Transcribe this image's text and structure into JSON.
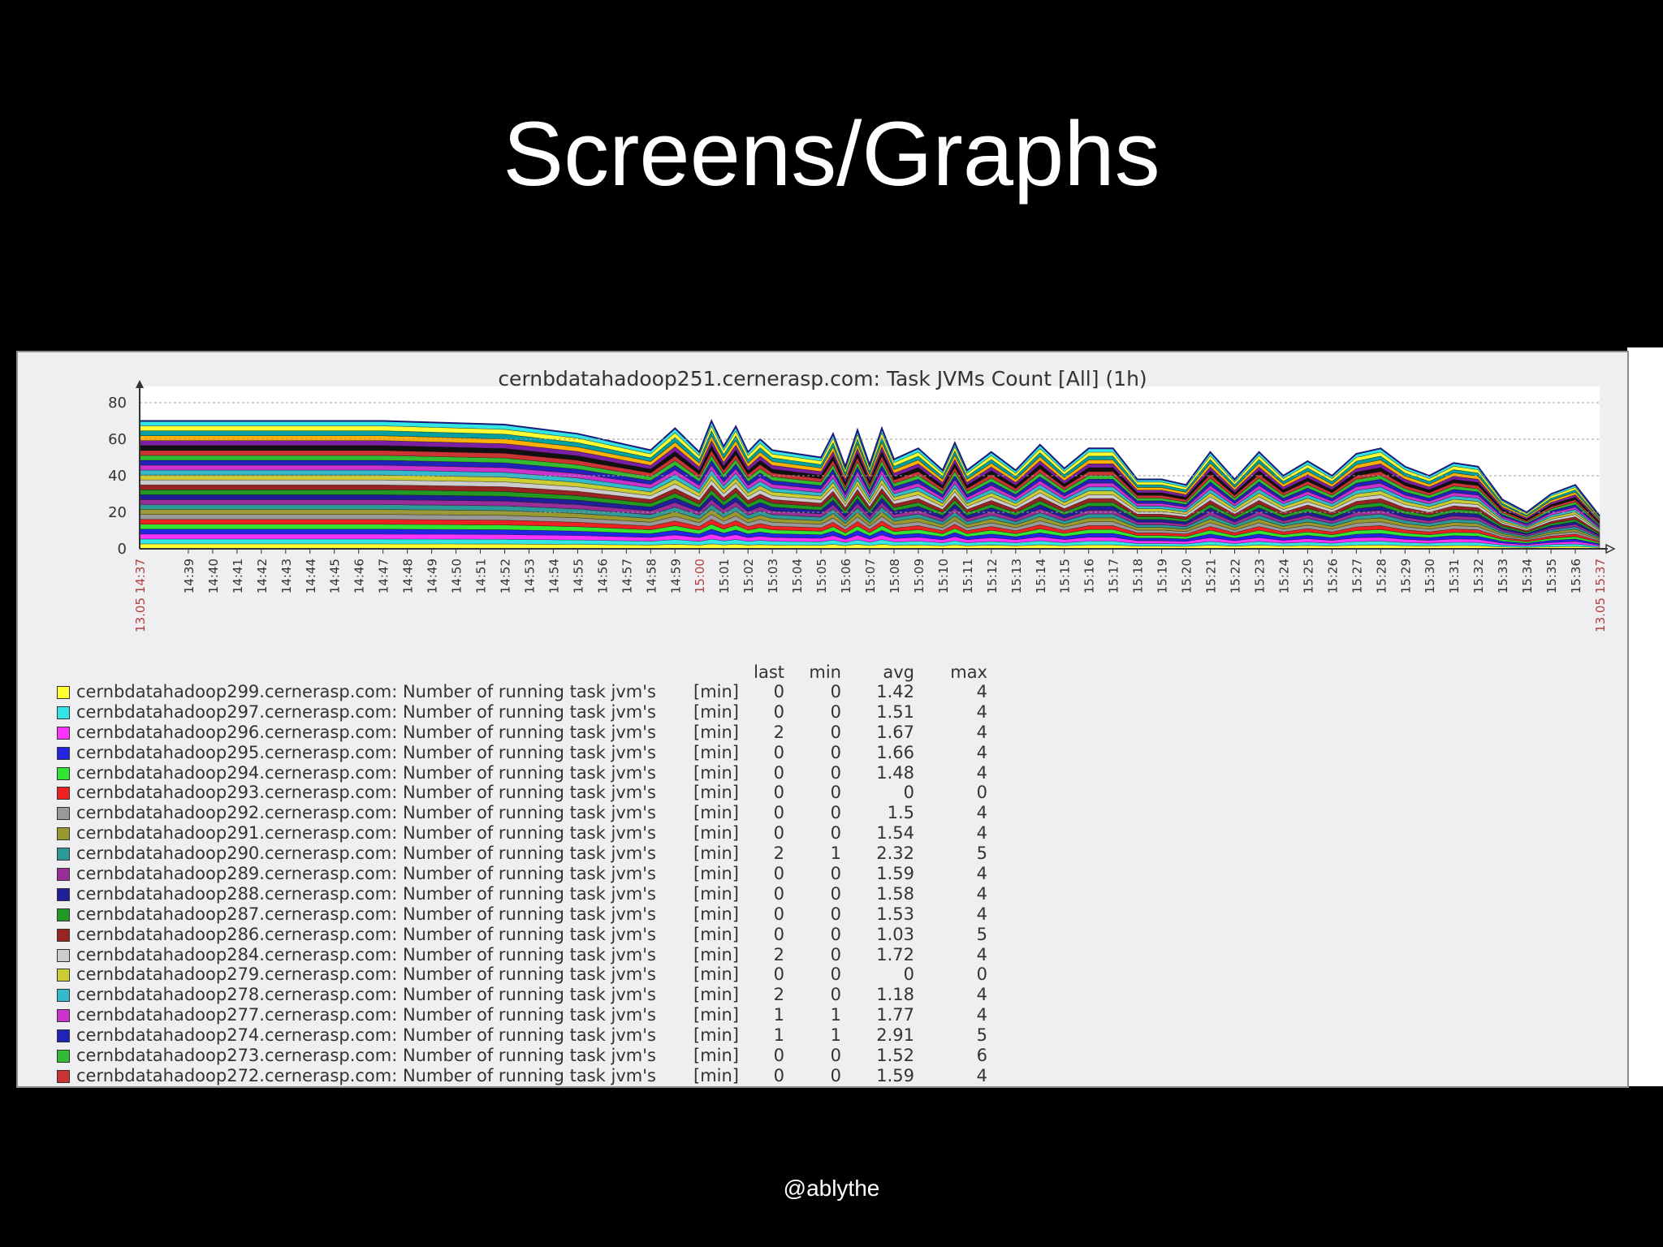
{
  "slide": {
    "title": "Screens/Graphs",
    "footer": "@ablythe"
  },
  "chart_data": {
    "type": "area",
    "title": "cernbdatahadoop251.cernerasp.com: Task JVMs Count [All] (1h)",
    "ylim": [
      0,
      80
    ],
    "y_ticks": [
      0,
      20,
      40,
      60,
      80
    ],
    "grid": true,
    "x_tick_labels": [
      "14:39",
      "14:40",
      "14:41",
      "14:42",
      "14:43",
      "14:44",
      "14:45",
      "14:46",
      "14:47",
      "14:48",
      "14:49",
      "14:50",
      "14:51",
      "14:52",
      "14:53",
      "14:54",
      "14:55",
      "14:56",
      "14:57",
      "14:58",
      "14:59",
      "15:00",
      "15:01",
      "15:02",
      "15:03",
      "15:04",
      "15:05",
      "15:06",
      "15:07",
      "15:08",
      "15:09",
      "15:10",
      "15:11",
      "15:12",
      "15:13",
      "15:14",
      "15:15",
      "15:16",
      "15:17",
      "15:18",
      "15:19",
      "15:20",
      "15:21",
      "15:22",
      "15:23",
      "15:24",
      "15:25",
      "15:26",
      "15:27",
      "15:28",
      "15:29",
      "15:30",
      "15:31",
      "15:32",
      "15:33",
      "15:34",
      "15:35",
      "15:36"
    ],
    "x_start_label": "13.05 14:37",
    "x_end_label": "13.05 15:37",
    "stacked_total": [
      {
        "x": "14:37",
        "y": 70
      },
      {
        "x": "14:47",
        "y": 70
      },
      {
        "x": "14:52",
        "y": 68
      },
      {
        "x": "14:55",
        "y": 63
      },
      {
        "x": "14:57",
        "y": 57
      },
      {
        "x": "14:58",
        "y": 54
      },
      {
        "x": "14:59",
        "y": 66
      },
      {
        "x": "15:00",
        "y": 53
      },
      {
        "x": "15:00:30",
        "y": 70
      },
      {
        "x": "15:01",
        "y": 56
      },
      {
        "x": "15:01:30",
        "y": 67
      },
      {
        "x": "15:02",
        "y": 53
      },
      {
        "x": "15:02:30",
        "y": 60
      },
      {
        "x": "15:03",
        "y": 54
      },
      {
        "x": "15:05",
        "y": 50
      },
      {
        "x": "15:05:30",
        "y": 63
      },
      {
        "x": "15:06",
        "y": 45
      },
      {
        "x": "15:06:30",
        "y": 65
      },
      {
        "x": "15:07",
        "y": 46
      },
      {
        "x": "15:07:30",
        "y": 66
      },
      {
        "x": "15:08",
        "y": 49
      },
      {
        "x": "15:09",
        "y": 55
      },
      {
        "x": "15:10",
        "y": 43
      },
      {
        "x": "15:10:30",
        "y": 58
      },
      {
        "x": "15:11",
        "y": 43
      },
      {
        "x": "15:12",
        "y": 53
      },
      {
        "x": "15:13",
        "y": 43
      },
      {
        "x": "15:14",
        "y": 57
      },
      {
        "x": "15:15",
        "y": 44
      },
      {
        "x": "15:16",
        "y": 55
      },
      {
        "x": "15:17",
        "y": 55
      },
      {
        "x": "15:18",
        "y": 38
      },
      {
        "x": "15:19",
        "y": 38
      },
      {
        "x": "15:20",
        "y": 35
      },
      {
        "x": "15:21",
        "y": 53
      },
      {
        "x": "15:22",
        "y": 38
      },
      {
        "x": "15:23",
        "y": 53
      },
      {
        "x": "15:24",
        "y": 40
      },
      {
        "x": "15:25",
        "y": 48
      },
      {
        "x": "15:26",
        "y": 40
      },
      {
        "x": "15:27",
        "y": 52
      },
      {
        "x": "15:28",
        "y": 55
      },
      {
        "x": "15:29",
        "y": 45
      },
      {
        "x": "15:30",
        "y": 40
      },
      {
        "x": "15:31",
        "y": 47
      },
      {
        "x": "15:32",
        "y": 45
      },
      {
        "x": "15:33",
        "y": 27
      },
      {
        "x": "15:34",
        "y": 20
      },
      {
        "x": "15:35",
        "y": 30
      },
      {
        "x": "15:36",
        "y": 35
      },
      {
        "x": "15:37",
        "y": 18
      }
    ],
    "legend_columns": [
      "last",
      "min",
      "avg",
      "max"
    ],
    "series": [
      {
        "name": "cernbdatahadoop299.cernerasp.com: Number of running task jvm's",
        "func": "[min]",
        "color": "#ffff33",
        "last": "0",
        "min": "0",
        "avg": "1.42",
        "max": "4"
      },
      {
        "name": "cernbdatahadoop297.cernerasp.com: Number of running task jvm's",
        "func": "[min]",
        "color": "#33e5e5",
        "last": "0",
        "min": "0",
        "avg": "1.51",
        "max": "4"
      },
      {
        "name": "cernbdatahadoop296.cernerasp.com: Number of running task jvm's",
        "func": "[min]",
        "color": "#ff33ff",
        "last": "2",
        "min": "0",
        "avg": "1.67",
        "max": "4"
      },
      {
        "name": "cernbdatahadoop295.cernerasp.com: Number of running task jvm's",
        "func": "[min]",
        "color": "#2424e6",
        "last": "0",
        "min": "0",
        "avg": "1.66",
        "max": "4"
      },
      {
        "name": "cernbdatahadoop294.cernerasp.com: Number of running task jvm's",
        "func": "[min]",
        "color": "#33e533",
        "last": "0",
        "min": "0",
        "avg": "1.48",
        "max": "4"
      },
      {
        "name": "cernbdatahadoop293.cernerasp.com: Number of running task jvm's",
        "func": "[min]",
        "color": "#ee2222",
        "last": "0",
        "min": "0",
        "avg": "0",
        "max": "0"
      },
      {
        "name": "cernbdatahadoop292.cernerasp.com: Number of running task jvm's",
        "func": "[min]",
        "color": "#999999",
        "last": "0",
        "min": "0",
        "avg": "1.5",
        "max": "4"
      },
      {
        "name": "cernbdatahadoop291.cernerasp.com: Number of running task jvm's",
        "func": "[min]",
        "color": "#99992e",
        "last": "0",
        "min": "0",
        "avg": "1.54",
        "max": "4"
      },
      {
        "name": "cernbdatahadoop290.cernerasp.com: Number of running task jvm's",
        "func": "[min]",
        "color": "#2e9999",
        "last": "2",
        "min": "1",
        "avg": "2.32",
        "max": "5"
      },
      {
        "name": "cernbdatahadoop289.cernerasp.com: Number of running task jvm's",
        "func": "[min]",
        "color": "#992e99",
        "last": "0",
        "min": "0",
        "avg": "1.59",
        "max": "4"
      },
      {
        "name": "cernbdatahadoop288.cernerasp.com: Number of running task jvm's",
        "func": "[min]",
        "color": "#1f1f99",
        "last": "0",
        "min": "0",
        "avg": "1.58",
        "max": "4"
      },
      {
        "name": "cernbdatahadoop287.cernerasp.com: Number of running task jvm's",
        "func": "[min]",
        "color": "#229922",
        "last": "0",
        "min": "0",
        "avg": "1.53",
        "max": "4"
      },
      {
        "name": "cernbdatahadoop286.cernerasp.com: Number of running task jvm's",
        "func": "[min]",
        "color": "#992222",
        "last": "0",
        "min": "0",
        "avg": "1.03",
        "max": "5"
      },
      {
        "name": "cernbdatahadoop284.cernerasp.com: Number of running task jvm's",
        "func": "[min]",
        "color": "#cccccc",
        "last": "2",
        "min": "0",
        "avg": "1.72",
        "max": "4"
      },
      {
        "name": "cernbdatahadoop279.cernerasp.com: Number of running task jvm's",
        "func": "[min]",
        "color": "#cccc33",
        "last": "0",
        "min": "0",
        "avg": "0",
        "max": "0"
      },
      {
        "name": "cernbdatahadoop278.cernerasp.com: Number of running task jvm's",
        "func": "[min]",
        "color": "#33bbcc",
        "last": "2",
        "min": "0",
        "avg": "1.18",
        "max": "4"
      },
      {
        "name": "cernbdatahadoop277.cernerasp.com: Number of running task jvm's",
        "func": "[min]",
        "color": "#cc33cc",
        "last": "1",
        "min": "1",
        "avg": "1.77",
        "max": "4"
      },
      {
        "name": "cernbdatahadoop274.cernerasp.com: Number of running task jvm's",
        "func": "[min]",
        "color": "#2222bb",
        "last": "1",
        "min": "1",
        "avg": "2.91",
        "max": "5"
      },
      {
        "name": "cernbdatahadoop273.cernerasp.com: Number of running task jvm's",
        "func": "[min]",
        "color": "#33bb33",
        "last": "0",
        "min": "0",
        "avg": "1.52",
        "max": "6"
      },
      {
        "name": "cernbdatahadoop272.cernerasp.com: Number of running task jvm's",
        "func": "[min]",
        "color": "#cc3333",
        "last": "0",
        "min": "0",
        "avg": "1.59",
        "max": "4"
      }
    ],
    "band_palette": [
      "#ffff33",
      "#33e5e5",
      "#ff33ff",
      "#2424e6",
      "#33e533",
      "#ee2222",
      "#999999",
      "#99992e",
      "#2e9999",
      "#992e99",
      "#1f1f99",
      "#229922",
      "#992222",
      "#cccccc",
      "#cccc33",
      "#33bbcc",
      "#cc33cc",
      "#2222bb",
      "#33bb33",
      "#cc3333",
      "#111111",
      "#7a1fa2",
      "#ffb000",
      "#00a0a0"
    ]
  }
}
